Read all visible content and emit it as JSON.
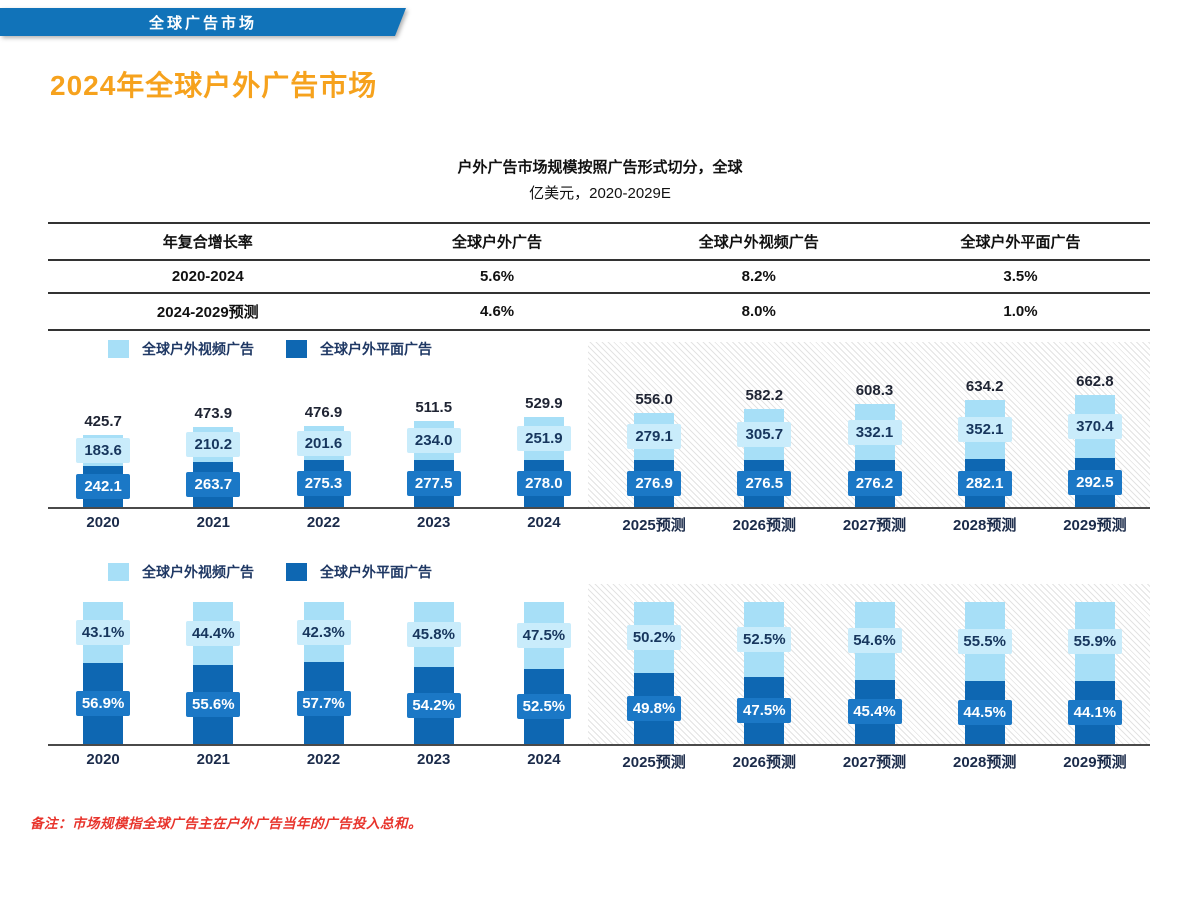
{
  "banner": {
    "label": "全球广告市场"
  },
  "page_title": "2024年全球户外广告市场",
  "chart_header": {
    "title": "户外广告市场规模按照广告形式切分，全球",
    "subtitle": "亿美元，2020-2029E"
  },
  "cagr_table": {
    "columns": [
      "年复合增长率",
      "全球户外广告",
      "全球户外视频广告",
      "全球户外平面广告"
    ],
    "rows": [
      [
        "2020-2024",
        "5.6%",
        "8.2%",
        "3.5%"
      ],
      [
        "2024-2029预测",
        "4.6%",
        "8.0%",
        "1.0%"
      ]
    ]
  },
  "legend": {
    "video": "全球户外视频广告",
    "print": "全球户外平面广告"
  },
  "colors": {
    "banner_blue": "#1173B9",
    "title_orange": "#F6A21D",
    "video": "#A7DFF7",
    "video_label_bg": "#C9ECFB",
    "video_label_text": "#17365D",
    "print": "#0E67B2",
    "print_label_bg": "#1B78C6",
    "print_label_text": "#FFFFFF",
    "total_label_text": "#1F2433",
    "axis_gray": "#4A4A4A",
    "note_red": "#E8342C"
  },
  "chart_data": [
    {
      "type": "bar",
      "stacked": true,
      "title": "户外广告市场规模按照广告形式切分，全球",
      "units": "亿美元",
      "categories": [
        "2020",
        "2021",
        "2022",
        "2023",
        "2024",
        "2025预测",
        "2026预测",
        "2027预测",
        "2028预测",
        "2029预测"
      ],
      "series": [
        {
          "name": "全球户外视频广告",
          "position": "top",
          "values": [
            183.6,
            210.2,
            201.6,
            234.0,
            251.9,
            279.1,
            305.7,
            332.1,
            352.1,
            370.4
          ]
        },
        {
          "name": "全球户外平面广告",
          "position": "bottom",
          "values": [
            242.1,
            263.7,
            275.3,
            277.5,
            278.0,
            276.9,
            276.5,
            276.2,
            282.1,
            292.5
          ]
        }
      ],
      "totals": [
        425.7,
        473.9,
        476.9,
        511.5,
        529.9,
        556.0,
        582.2,
        608.3,
        634.2,
        662.8
      ],
      "forecast_from_index": 5,
      "legend_position": "top-left",
      "grid": false
    },
    {
      "type": "bar",
      "stacked": true,
      "percent": true,
      "categories": [
        "2020",
        "2021",
        "2022",
        "2023",
        "2024",
        "2025预测",
        "2026预测",
        "2027预测",
        "2028预测",
        "2029预测"
      ],
      "series": [
        {
          "name": "全球户外视频广告",
          "position": "top",
          "values": [
            43.1,
            44.4,
            42.3,
            45.8,
            47.5,
            50.2,
            52.5,
            54.6,
            55.5,
            55.9
          ]
        },
        {
          "name": "全球户外平面广告",
          "position": "bottom",
          "values": [
            56.9,
            55.6,
            57.7,
            54.2,
            52.5,
            49.8,
            47.5,
            45.4,
            44.5,
            44.1
          ]
        }
      ],
      "forecast_from_index": 5,
      "legend_position": "top-left",
      "grid": false
    }
  ],
  "note": "备注：市场规模指全球广告主在户外广告当年的广告投入总和。"
}
